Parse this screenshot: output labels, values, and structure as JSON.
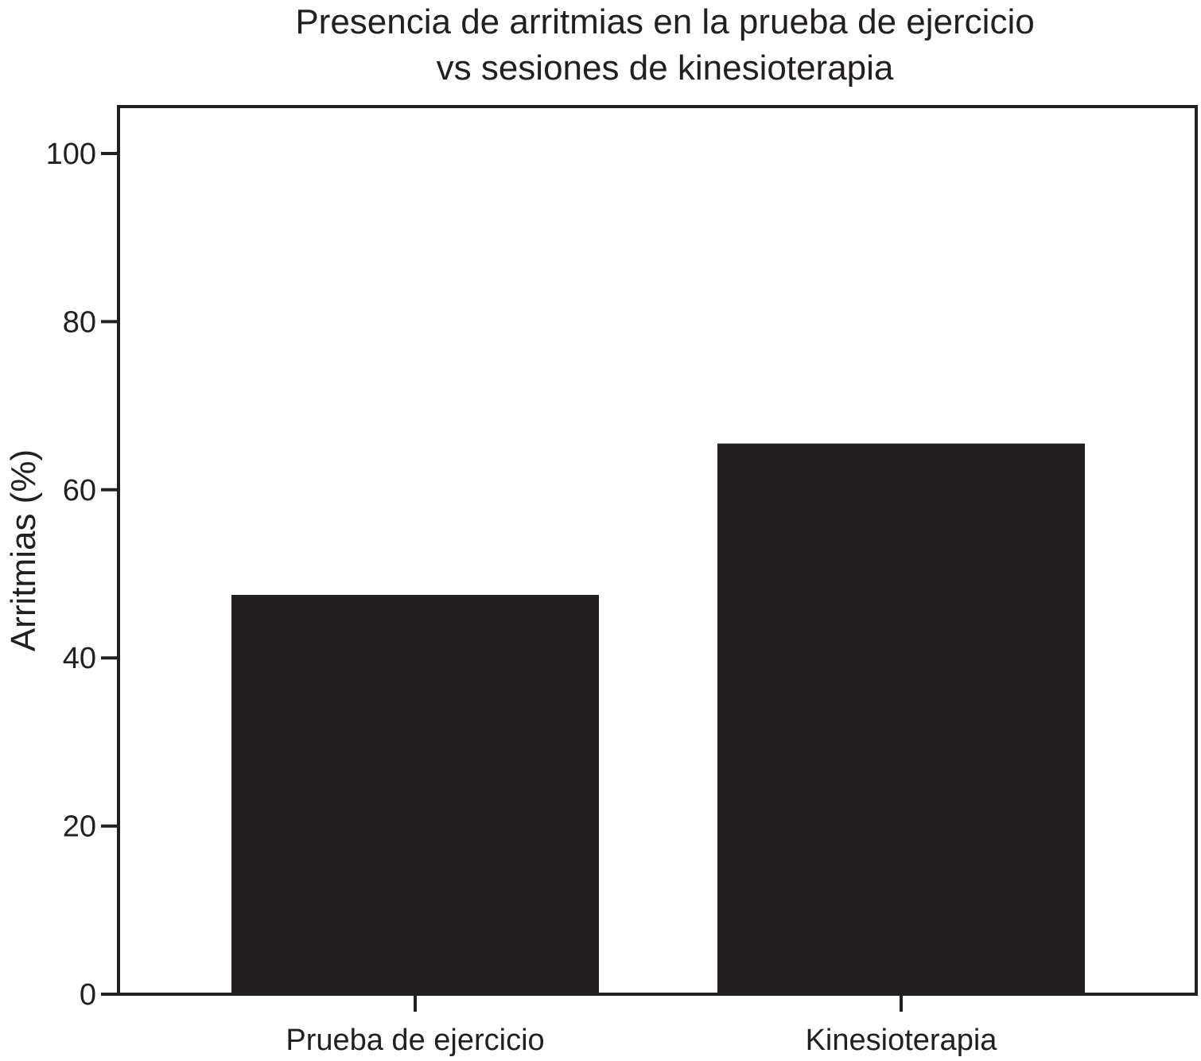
{
  "chart_data": {
    "type": "bar",
    "title_lines": [
      "Presencia de arritmias en la prueba de ejercicio",
      "vs sesiones de kinesioterapia"
    ],
    "xlabel": "",
    "ylabel": "Arritmias (%)",
    "categories": [
      "Prueba de ejercicio",
      "Kinesioterapia"
    ],
    "values": [
      47.5,
      65.5
    ],
    "ylim": [
      0,
      105
    ],
    "yticks": [
      0,
      20,
      40,
      60,
      80,
      100
    ],
    "grid": false,
    "legend": "none",
    "bar_color": "#231f20",
    "axis_color": "#231f20"
  }
}
